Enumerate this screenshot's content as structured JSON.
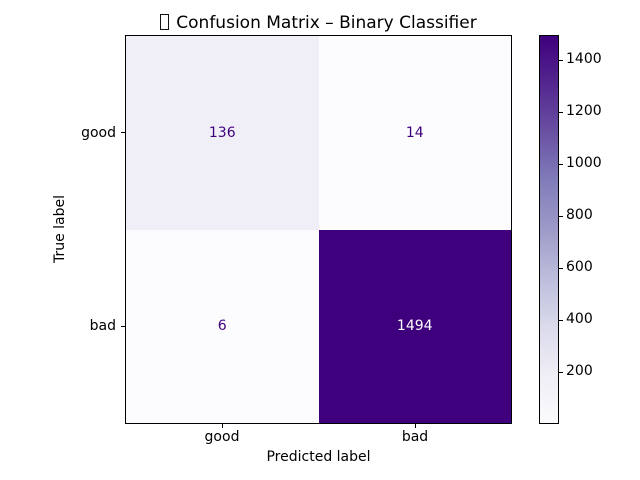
{
  "figure": {
    "background": "#ffffff"
  },
  "chart_data": {
    "type": "heatmap",
    "subtype": "confusion_matrix",
    "title": {
      "prefix_glyph": "missing-glyph-box",
      "text": "Confusion Matrix – Binary Classifier"
    },
    "xlabel": "Predicted label",
    "ylabel": "True label",
    "x_tick_labels": [
      "good",
      "bad"
    ],
    "y_tick_labels": [
      "good",
      "bad"
    ],
    "matrix": [
      [
        136,
        14
      ],
      [
        6,
        1494
      ]
    ],
    "colormap": {
      "name": "Purples",
      "stops": [
        "#fcfbfd",
        "#efedf5",
        "#dadaeb",
        "#bcbddc",
        "#9e9ac8",
        "#807dba",
        "#6a51a3",
        "#54278f",
        "#3f007d"
      ]
    },
    "colorbar": {
      "vmin": 6,
      "vmax": 1494,
      "ticks": [
        200,
        400,
        600,
        800,
        1000,
        1200,
        1400
      ],
      "legend_position": "right"
    },
    "cell_colors": [
      [
        "#f0eef6",
        "#fcfbfd"
      ],
      [
        "#fcfbfd",
        "#3f007d"
      ]
    ],
    "cell_text_colors": [
      [
        "#3f007d",
        "#3f007d"
      ],
      [
        "#3f007d",
        "#ffffff"
      ]
    ],
    "grid": false
  }
}
